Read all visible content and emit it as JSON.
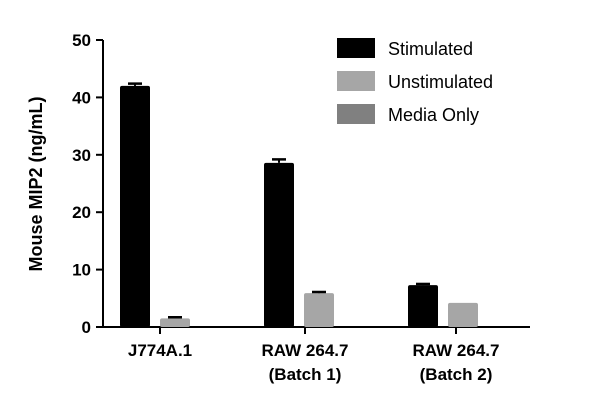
{
  "chart_data": {
    "type": "bar",
    "title": "",
    "xlabel": "",
    "ylabel": "Mouse MIP2 (ng/mL)",
    "ylim": [
      0,
      50
    ],
    "yticks": [
      0,
      10,
      20,
      30,
      40,
      50
    ],
    "categories": [
      [
        "J774A.1"
      ],
      [
        "RAW 264.7",
        "(Batch 1)"
      ],
      [
        "RAW 264.7",
        "(Batch 2)"
      ]
    ],
    "series": [
      {
        "name": "Stimulated",
        "color": "#000000",
        "values": [
          42.0,
          28.6,
          7.3
        ],
        "errors": [
          0.4,
          0.6,
          0.2
        ]
      },
      {
        "name": "Unstimulated",
        "color": "#a6a6a6",
        "values": [
          1.5,
          5.9,
          4.2
        ],
        "errors": [
          0.2,
          0.2,
          0.0
        ]
      },
      {
        "name": "Media Only",
        "color": "#808080",
        "values": [
          null,
          null,
          null
        ],
        "errors": [
          null,
          null,
          null
        ]
      }
    ],
    "legend_position": "top-right",
    "grid": false
  }
}
